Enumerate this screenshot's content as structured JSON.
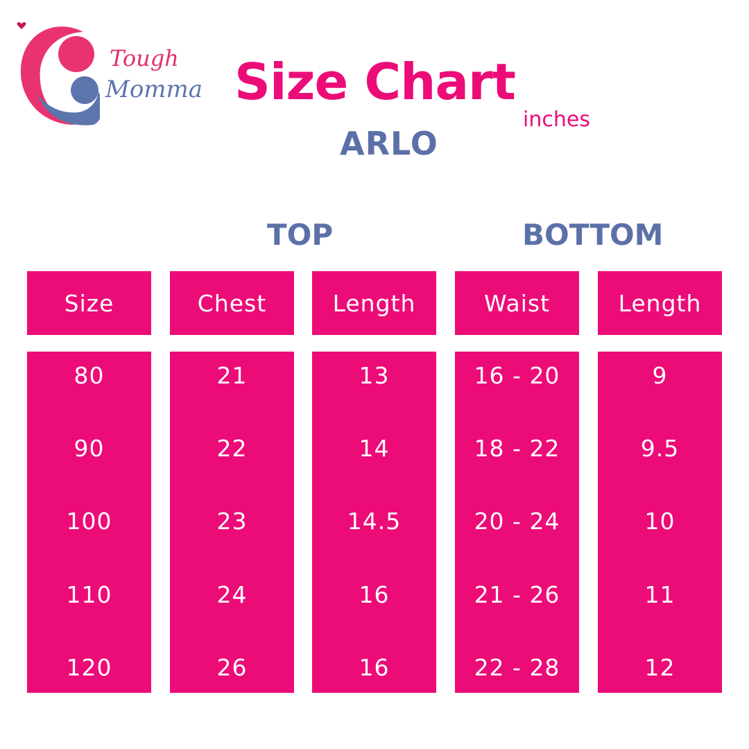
{
  "brand": {
    "line1": "Tough",
    "line2": "Momma"
  },
  "title": "Size Chart",
  "unit": "inches",
  "product": "ARLO",
  "groups": {
    "top": "TOP",
    "bottom": "BOTTOM"
  },
  "columns": [
    "Size",
    "Chest",
    "Length",
    "Waist",
    "Length"
  ],
  "rows": [
    [
      "80",
      "21",
      "13",
      "16 - 20",
      "9"
    ],
    [
      "90",
      "22",
      "14",
      "18 - 22",
      "9.5"
    ],
    [
      "100",
      "23",
      "14.5",
      "20 - 24",
      "10"
    ],
    [
      "110",
      "24",
      "16",
      "21 - 26",
      "11"
    ],
    [
      "120",
      "26",
      "16",
      "22 - 28",
      "12"
    ]
  ],
  "colors": {
    "pink": "#ec0c78",
    "blue": "#5c70a8",
    "logo_pink": "#e0306e"
  }
}
